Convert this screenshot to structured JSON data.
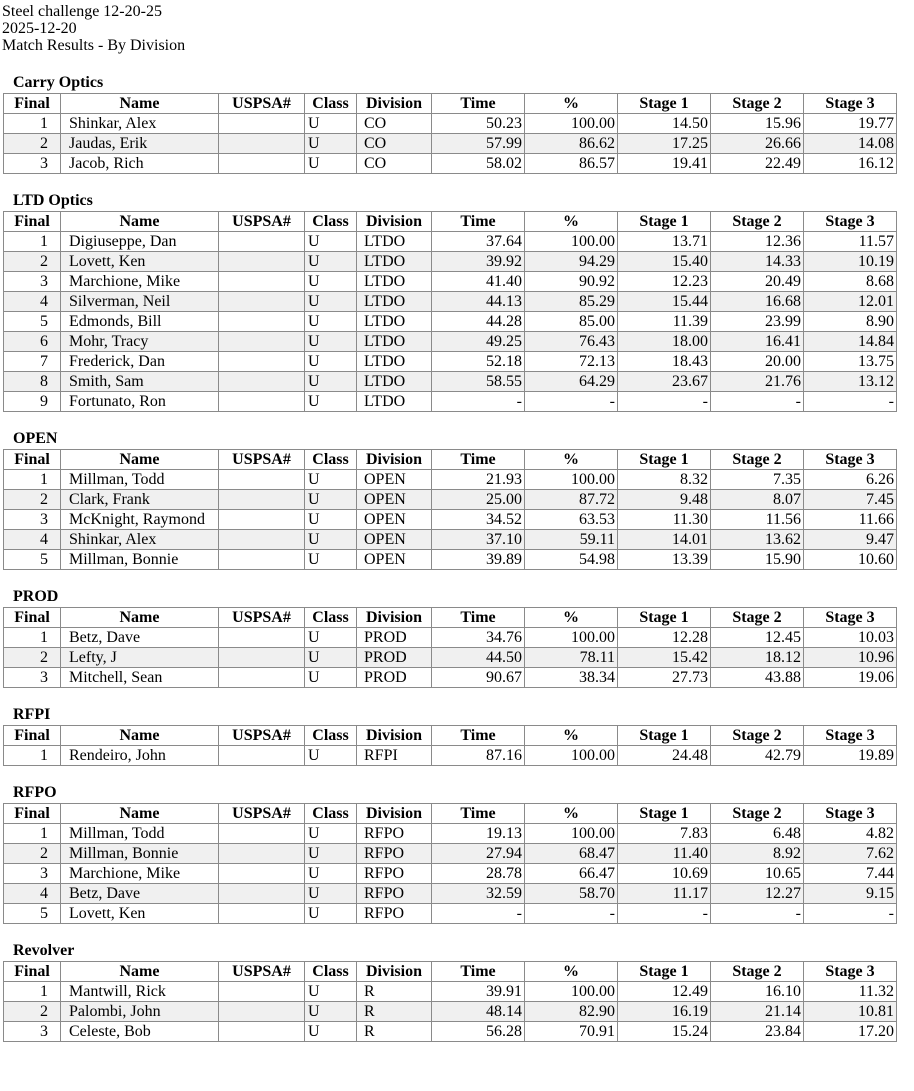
{
  "header": {
    "match_name": "Steel challenge 12-20-25",
    "date": "2025-12-20",
    "report_title": "Match Results - By Division"
  },
  "columns": [
    "Final",
    "Name",
    "USPSA#",
    "Class",
    "Division",
    "Time",
    "%",
    "Stage 1",
    "Stage 2",
    "Stage 3"
  ],
  "divisions": [
    {
      "title": "Carry Optics",
      "rows": [
        [
          "1",
          "Shinkar, Alex",
          "",
          "U",
          "CO",
          "50.23",
          "100.00",
          "14.50",
          "15.96",
          "19.77"
        ],
        [
          "2",
          "Jaudas, Erik",
          "",
          "U",
          "CO",
          "57.99",
          "86.62",
          "17.25",
          "26.66",
          "14.08"
        ],
        [
          "3",
          "Jacob, Rich",
          "",
          "U",
          "CO",
          "58.02",
          "86.57",
          "19.41",
          "22.49",
          "16.12"
        ]
      ]
    },
    {
      "title": "LTD Optics",
      "rows": [
        [
          "1",
          "Digiuseppe, Dan",
          "",
          "U",
          "LTDO",
          "37.64",
          "100.00",
          "13.71",
          "12.36",
          "11.57"
        ],
        [
          "2",
          "Lovett, Ken",
          "",
          "U",
          "LTDO",
          "39.92",
          "94.29",
          "15.40",
          "14.33",
          "10.19"
        ],
        [
          "3",
          "Marchione, Mike",
          "",
          "U",
          "LTDO",
          "41.40",
          "90.92",
          "12.23",
          "20.49",
          "8.68"
        ],
        [
          "4",
          "Silverman, Neil",
          "",
          "U",
          "LTDO",
          "44.13",
          "85.29",
          "15.44",
          "16.68",
          "12.01"
        ],
        [
          "5",
          "Edmonds, Bill",
          "",
          "U",
          "LTDO",
          "44.28",
          "85.00",
          "11.39",
          "23.99",
          "8.90"
        ],
        [
          "6",
          "Mohr, Tracy",
          "",
          "U",
          "LTDO",
          "49.25",
          "76.43",
          "18.00",
          "16.41",
          "14.84"
        ],
        [
          "7",
          "Frederick, Dan",
          "",
          "U",
          "LTDO",
          "52.18",
          "72.13",
          "18.43",
          "20.00",
          "13.75"
        ],
        [
          "8",
          "Smith, Sam",
          "",
          "U",
          "LTDO",
          "58.55",
          "64.29",
          "23.67",
          "21.76",
          "13.12"
        ],
        [
          "9",
          "Fortunato, Ron",
          "",
          "U",
          "LTDO",
          "-",
          "-",
          "-",
          "-",
          "-"
        ]
      ]
    },
    {
      "title": "OPEN",
      "rows": [
        [
          "1",
          "Millman, Todd",
          "",
          "U",
          "OPEN",
          "21.93",
          "100.00",
          "8.32",
          "7.35",
          "6.26"
        ],
        [
          "2",
          "Clark, Frank",
          "",
          "U",
          "OPEN",
          "25.00",
          "87.72",
          "9.48",
          "8.07",
          "7.45"
        ],
        [
          "3",
          "McKnight, Raymond",
          "",
          "U",
          "OPEN",
          "34.52",
          "63.53",
          "11.30",
          "11.56",
          "11.66"
        ],
        [
          "4",
          "Shinkar, Alex",
          "",
          "U",
          "OPEN",
          "37.10",
          "59.11",
          "14.01",
          "13.62",
          "9.47"
        ],
        [
          "5",
          "Millman, Bonnie",
          "",
          "U",
          "OPEN",
          "39.89",
          "54.98",
          "13.39",
          "15.90",
          "10.60"
        ]
      ]
    },
    {
      "title": "PROD",
      "rows": [
        [
          "1",
          "Betz, Dave",
          "",
          "U",
          "PROD",
          "34.76",
          "100.00",
          "12.28",
          "12.45",
          "10.03"
        ],
        [
          "2",
          "Lefty, J",
          "",
          "U",
          "PROD",
          "44.50",
          "78.11",
          "15.42",
          "18.12",
          "10.96"
        ],
        [
          "3",
          "Mitchell, Sean",
          "",
          "U",
          "PROD",
          "90.67",
          "38.34",
          "27.73",
          "43.88",
          "19.06"
        ]
      ]
    },
    {
      "title": "RFPI",
      "rows": [
        [
          "1",
          "Rendeiro, John",
          "",
          "U",
          "RFPI",
          "87.16",
          "100.00",
          "24.48",
          "42.79",
          "19.89"
        ]
      ]
    },
    {
      "title": "RFPO",
      "rows": [
        [
          "1",
          "Millman, Todd",
          "",
          "U",
          "RFPO",
          "19.13",
          "100.00",
          "7.83",
          "6.48",
          "4.82"
        ],
        [
          "2",
          "Millman, Bonnie",
          "",
          "U",
          "RFPO",
          "27.94",
          "68.47",
          "11.40",
          "8.92",
          "7.62"
        ],
        [
          "3",
          "Marchione, Mike",
          "",
          "U",
          "RFPO",
          "28.78",
          "66.47",
          "10.69",
          "10.65",
          "7.44"
        ],
        [
          "4",
          "Betz, Dave",
          "",
          "U",
          "RFPO",
          "32.59",
          "58.70",
          "11.17",
          "12.27",
          "9.15"
        ],
        [
          "5",
          "Lovett, Ken",
          "",
          "U",
          "RFPO",
          "-",
          "-",
          "-",
          "-",
          "-"
        ]
      ]
    },
    {
      "title": "Revolver",
      "rows": [
        [
          "1",
          "Mantwill, Rick",
          "",
          "U",
          "R",
          "39.91",
          "100.00",
          "12.49",
          "16.10",
          "11.32"
        ],
        [
          "2",
          "Palombi, John",
          "",
          "U",
          "R",
          "48.14",
          "82.90",
          "16.19",
          "21.14",
          "10.81"
        ],
        [
          "3",
          "Celeste, Bob",
          "",
          "U",
          "R",
          "56.28",
          "70.91",
          "15.24",
          "23.84",
          "17.20"
        ]
      ]
    }
  ]
}
